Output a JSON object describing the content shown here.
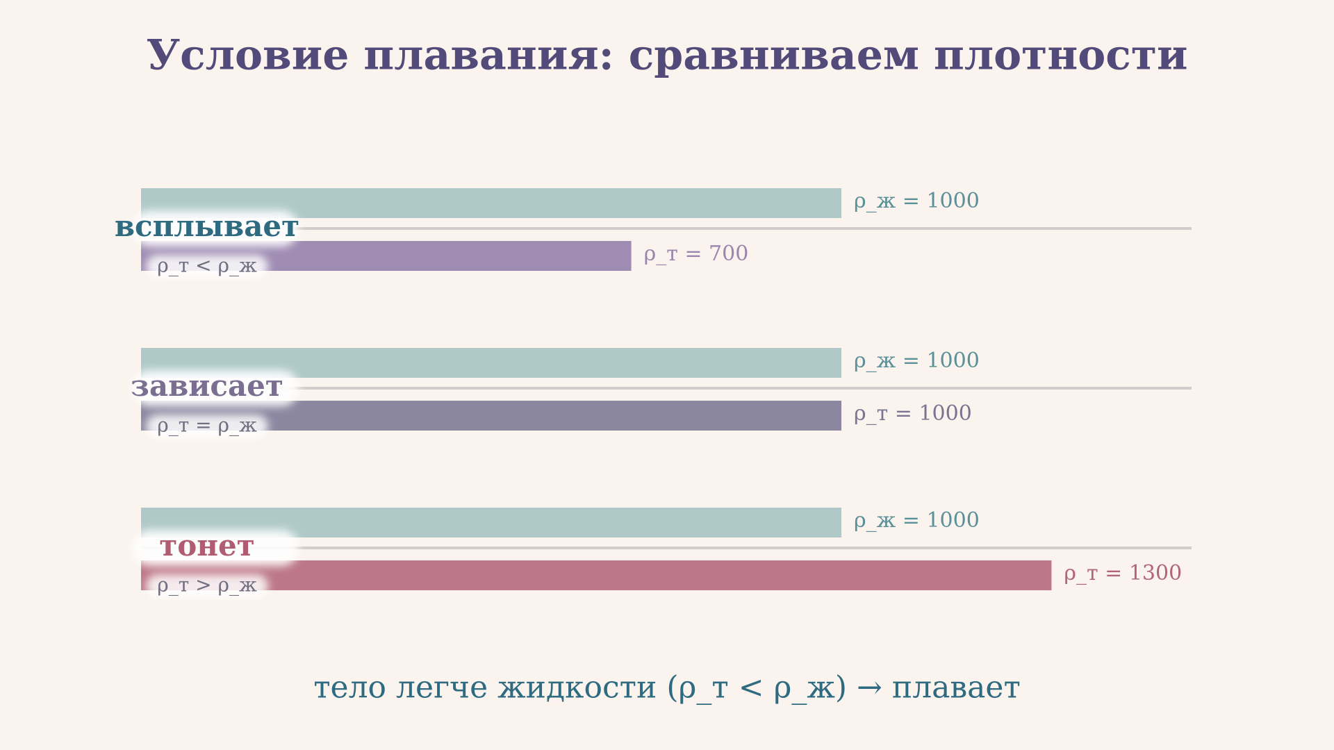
{
  "chart_data": {
    "type": "bar",
    "orientation": "horizontal",
    "title": "Условие плавания: сравниваем плотности",
    "categories": [
      "всплывает",
      "зависает",
      "тонет"
    ],
    "category_colors": [
      "#2e6b80",
      "#7a6f90",
      "#b05c72"
    ],
    "conditions": [
      "ρ_т < ρ_ж",
      "ρ_т = ρ_ж",
      "ρ_т > ρ_ж"
    ],
    "series": [
      {
        "color": "#afc9c9",
        "label_color": "#5a9199",
        "values": [
          1000,
          1000,
          1000
        ],
        "value_labels": [
          "ρ_ж = 1000",
          "ρ_ж = 1000",
          "ρ_ж = 1000"
        ]
      },
      {
        "colors": [
          "#9f8cb3",
          "#8b87a0",
          "#bd7888"
        ],
        "label_colors": [
          "#9a86ad",
          "#7a7490",
          "#b36578"
        ],
        "values": [
          700,
          1000,
          1300
        ],
        "value_labels": [
          "ρ_т = 700",
          "ρ_т = 1000",
          "ρ_т = 1300"
        ]
      }
    ],
    "xlim": [
      0,
      1500
    ],
    "footer": "тело легче жидкости (ρ_т < ρ_ж) → плавает"
  }
}
